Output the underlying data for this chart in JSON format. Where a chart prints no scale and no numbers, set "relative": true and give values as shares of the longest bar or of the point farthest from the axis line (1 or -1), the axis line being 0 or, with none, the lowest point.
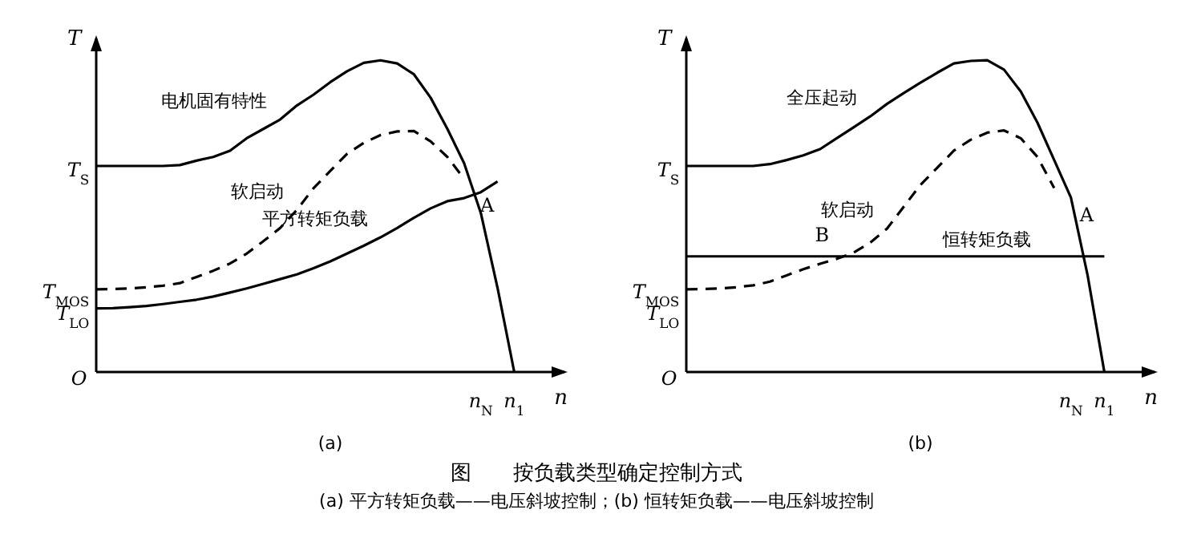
{
  "chart_data": [
    {
      "type": "line",
      "relative": true,
      "xlabel": "n",
      "ylabel": "T",
      "categories": [
        null,
        null,
        null,
        null,
        null,
        null,
        null,
        null,
        null,
        null,
        null,
        null,
        null,
        null,
        null,
        null,
        null,
        null,
        null,
        null,
        null,
        null,
        null,
        "n$_{N}$",
        null,
        "n$_{1}$",
        null,
        null,
        null
      ],
      "series": [
        {
          "name": "电机固有特性",
          "color": "#000000",
          "line_style": "solid",
          "values": [
            0.661,
            0.661,
            0.661,
            0.661,
            0.661,
            0.664,
            0.678,
            0.69,
            0.71,
            0.75,
            0.78,
            0.81,
            0.855,
            0.89,
            0.93,
            0.965,
            0.992,
            1.0,
            0.99,
            0.955,
            0.88,
            0.78,
            0.67,
            0.51,
            0.27,
            0,
            null,
            null,
            null
          ]
        },
        {
          "name": "软启动",
          "color": "#000000",
          "line_style": "dashed",
          "values": [
            0.265,
            0.266,
            0.268,
            0.272,
            0.277,
            0.285,
            0.305,
            0.325,
            0.348,
            0.38,
            0.42,
            0.462,
            0.52,
            0.59,
            0.645,
            0.7,
            0.735,
            0.76,
            0.772,
            0.773,
            0.74,
            0.69,
            0.62,
            null,
            null,
            null,
            null,
            null,
            null
          ]
        },
        {
          "name": "平方转矩负载",
          "color": "#000000",
          "line_style": "solid",
          "values": [
            0.204,
            0.205,
            0.208,
            0.212,
            0.218,
            0.225,
            0.232,
            0.242,
            0.255,
            0.268,
            0.283,
            0.298,
            0.313,
            0.333,
            0.355,
            0.38,
            0.405,
            0.432,
            0.462,
            0.495,
            0.525,
            0.548,
            0.558,
            0.577,
            0.611,
            null,
            null,
            null,
            null
          ]
        }
      ],
      "annotations": [
        "(a)",
        "A",
        "O",
        "T$_{LO}$",
        "T$_{MOS}$",
        "T$_{S}$"
      ]
    },
    {
      "type": "line",
      "relative": true,
      "xlabel": "n",
      "ylabel": "T",
      "categories": [
        null,
        null,
        null,
        null,
        null,
        null,
        null,
        null,
        null,
        null,
        null,
        null,
        null,
        null,
        null,
        null,
        null,
        null,
        null,
        null,
        null,
        null,
        null,
        "n$_{N}$",
        null,
        "n$_{1}$",
        null,
        null,
        null
      ],
      "series": [
        {
          "name": "全压起动",
          "color": "#000000",
          "line_style": "solid",
          "values": [
            0.661,
            0.661,
            0.661,
            0.661,
            0.661,
            0.667,
            0.68,
            0.695,
            0.715,
            0.75,
            0.785,
            0.82,
            0.86,
            0.895,
            0.928,
            0.96,
            0.99,
            0.998,
            1.0,
            0.97,
            0.9,
            0.8,
            0.68,
            0.56,
            0.31,
            0,
            null,
            null,
            null
          ]
        },
        {
          "name": "软启动",
          "color": "#000000",
          "line_style": "dashed",
          "values": [
            0.265,
            0.266,
            0.268,
            0.272,
            0.278,
            0.29,
            0.31,
            0.33,
            0.347,
            0.363,
            0.383,
            0.415,
            0.46,
            0.53,
            0.6,
            0.655,
            0.71,
            0.745,
            0.768,
            0.775,
            0.75,
            0.69,
            0.59,
            null,
            null,
            null,
            null,
            null,
            null
          ]
        },
        {
          "name": "恒转矩负载",
          "color": "#000000",
          "line_style": "solid",
          "values": [
            0.371,
            0.371,
            0.371,
            0.371,
            0.371,
            0.371,
            0.371,
            0.371,
            0.371,
            0.371,
            0.371,
            0.371,
            0.371,
            0.371,
            0.371,
            0.371,
            0.371,
            0.371,
            0.371,
            0.371,
            0.371,
            0.371,
            0.371,
            0.371,
            0.371,
            0.371,
            null,
            null,
            null
          ]
        }
      ],
      "annotations": [
        "(b)",
        "A",
        "B",
        "O",
        "T$_{LO}$",
        "T$_{MOS}$",
        "T$_{S}$",
        "图　　按负载类型确定控制方式",
        "(a) 平方转矩负载——电压斜坡控制；(b) 恒转矩负载——电压斜坡控制"
      ]
    }
  ]
}
